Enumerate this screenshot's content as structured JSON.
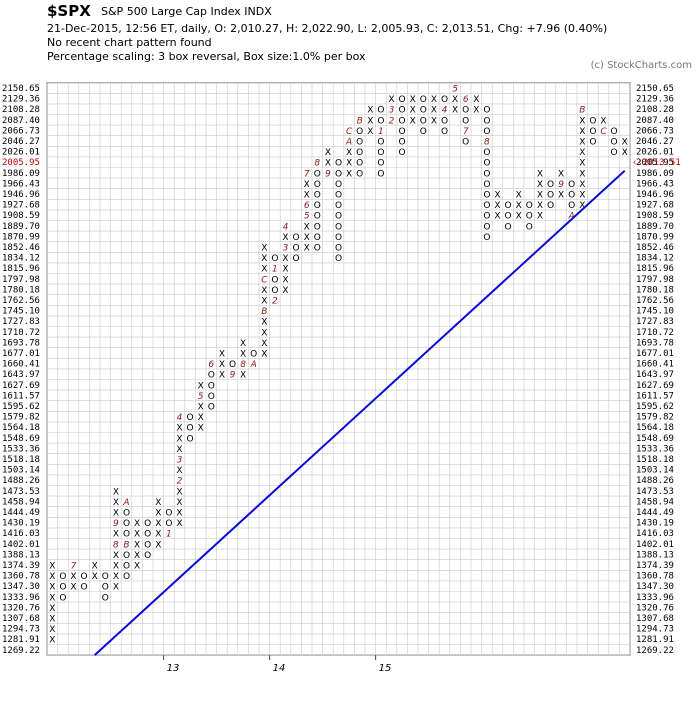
{
  "header": {
    "symbol": "$SPX",
    "name": "S&P 500 Large Cap Index  INDX",
    "quote": "21-Dec-2015, 12:56 ET, daily, O: 2,010.27, H: 2,022.90, L: 2,005.93, C: 2,013.51, Chg: +7.96 (0.40%)",
    "pattern": "No recent chart pattern found",
    "scaling": "Percentage scaling: 3 box reversal, Box size:1.0% per box",
    "credit": "(c) StockCharts.com"
  },
  "chart_data": {
    "type": "point-and-figure",
    "box_size_percent": 1.0,
    "reversal": 3,
    "y_levels": [
      "1269.22",
      "1281.91",
      "1294.73",
      "1307.68",
      "1320.76",
      "1333.96",
      "1347.30",
      "1360.78",
      "1374.39",
      "1388.13",
      "1402.01",
      "1416.03",
      "1430.19",
      "1444.49",
      "1458.94",
      "1473.53",
      "1488.26",
      "1503.14",
      "1518.18",
      "1533.36",
      "1548.69",
      "1564.18",
      "1579.82",
      "1595.62",
      "1611.57",
      "1627.69",
      "1643.97",
      "1660.41",
      "1677.01",
      "1693.78",
      "1710.72",
      "1727.83",
      "1745.10",
      "1762.56",
      "1780.18",
      "1797.98",
      "1815.96",
      "1834.12",
      "1852.46",
      "1870.99",
      "1889.70",
      "1908.59",
      "1927.68",
      "1946.96",
      "1966.43",
      "1986.09",
      "2005.95",
      "2026.01",
      "2046.27",
      "2066.73",
      "2087.40",
      "2108.28",
      "2129.36",
      "2150.65"
    ],
    "highlight_left": "2005.95",
    "last_price_label": "2013.51",
    "year_labels": [
      {
        "label": "13",
        "col": 12
      },
      {
        "label": "14",
        "col": 22
      },
      {
        "label": "15",
        "col": 32
      }
    ],
    "columns": [
      {
        "t": "X",
        "from": 1,
        "to": 8
      },
      {
        "t": "O",
        "from": 5,
        "to": 7
      },
      {
        "t": "X",
        "from": 6,
        "to": 8,
        "m": {
          "8": "7"
        }
      },
      {
        "t": "O",
        "from": 6,
        "to": 7
      },
      {
        "t": "X",
        "from": 7,
        "to": 8
      },
      {
        "t": "O",
        "from": 5,
        "to": 7
      },
      {
        "t": "X",
        "from": 6,
        "to": 15,
        "m": {
          "10": "8",
          "12": "9"
        }
      },
      {
        "t": "O",
        "from": 7,
        "to": 14,
        "m": {
          "10": "B",
          "14": "A"
        }
      },
      {
        "t": "X",
        "from": 8,
        "to": 12
      },
      {
        "t": "O",
        "from": 9,
        "to": 12
      },
      {
        "t": "X",
        "from": 10,
        "to": 14
      },
      {
        "t": "O",
        "from": 11,
        "to": 13,
        "m": {
          "11": "1"
        }
      },
      {
        "t": "X",
        "from": 12,
        "to": 22,
        "m": {
          "16": "2",
          "18": "3",
          "22": "4"
        }
      },
      {
        "t": "O",
        "from": 20,
        "to": 22
      },
      {
        "t": "X",
        "from": 21,
        "to": 25,
        "m": {
          "24": "5"
        }
      },
      {
        "t": "O",
        "from": 23,
        "to": 27,
        "m": {
          "27": "6"
        }
      },
      {
        "t": "X",
        "from": 26,
        "to": 28
      },
      {
        "t": "O",
        "from": 26,
        "to": 27,
        "m": {
          "26": "9"
        }
      },
      {
        "t": "X",
        "from": 26,
        "to": 29,
        "m": {
          "27": "8"
        }
      },
      {
        "t": "O",
        "from": 27,
        "to": 28,
        "m": {
          "27": "A"
        }
      },
      {
        "t": "X",
        "from": 28,
        "to": 38,
        "m": {
          "32": "B",
          "35": "C"
        }
      },
      {
        "t": "O",
        "from": 33,
        "to": 37,
        "m": {
          "33": "2",
          "36": "1"
        }
      },
      {
        "t": "X",
        "from": 34,
        "to": 40,
        "m": {
          "40": "4",
          "38": "3"
        }
      },
      {
        "t": "O",
        "from": 37,
        "to": 39
      },
      {
        "t": "X",
        "from": 38,
        "to": 45,
        "m": {
          "41": "5",
          "42": "6",
          "45": "7"
        }
      },
      {
        "t": "O",
        "from": 38,
        "to": 46,
        "m": {
          "46": "8"
        }
      },
      {
        "t": "X",
        "from": 45,
        "to": 47,
        "m": {
          "45": "9"
        }
      },
      {
        "t": "O",
        "from": 37,
        "to": 46
      },
      {
        "t": "X",
        "from": 45,
        "to": 49,
        "m": {
          "48": "A",
          "49": "C"
        }
      },
      {
        "t": "O",
        "from": 45,
        "to": 50,
        "m": {
          "50": "B"
        }
      },
      {
        "t": "X",
        "from": 49,
        "to": 51
      },
      {
        "t": "O",
        "from": 45,
        "to": 51,
        "m": {
          "49": "1"
        }
      },
      {
        "t": "X",
        "from": 50,
        "to": 52,
        "m": {
          "50": "2",
          "51": "3"
        }
      },
      {
        "t": "O",
        "from": 47,
        "to": 52
      },
      {
        "t": "X",
        "from": 50,
        "to": 52
      },
      {
        "t": "O",
        "from": 49,
        "to": 52
      },
      {
        "t": "X",
        "from": 50,
        "to": 52
      },
      {
        "t": "O",
        "from": 49,
        "to": 52,
        "m": {
          "51": "4"
        }
      },
      {
        "t": "X",
        "from": 51,
        "to": 53,
        "m": {
          "53": "5"
        }
      },
      {
        "t": "O",
        "from": 48,
        "to": 52,
        "m": {
          "52": "6",
          "49": "7"
        }
      },
      {
        "t": "X",
        "from": 51,
        "to": 52
      },
      {
        "t": "O",
        "from": 39,
        "to": 51,
        "m": {
          "48": "8"
        }
      },
      {
        "t": "X",
        "from": 41,
        "to": 43
      },
      {
        "t": "O",
        "from": 40,
        "to": 42
      },
      {
        "t": "X",
        "from": 41,
        "to": 43
      },
      {
        "t": "O",
        "from": 40,
        "to": 42
      },
      {
        "t": "X",
        "from": 41,
        "to": 45
      },
      {
        "t": "O",
        "from": 42,
        "to": 44
      },
      {
        "t": "X",
        "from": 43,
        "to": 45,
        "m": {
          "44": "9"
        }
      },
      {
        "t": "O",
        "from": 41,
        "to": 44,
        "m": {
          "41": "A"
        }
      },
      {
        "t": "X",
        "from": 42,
        "to": 51,
        "m": {
          "51": "B"
        }
      },
      {
        "t": "O",
        "from": 48,
        "to": 50
      },
      {
        "t": "X",
        "from": 49,
        "to": 50,
        "m": {
          "49": "C"
        }
      },
      {
        "t": "O",
        "from": 47,
        "to": 49
      },
      {
        "t": "X",
        "from": 47,
        "to": 48
      }
    ],
    "trendline": {
      "type": "bullish support",
      "from": {
        "col": 5,
        "level": "1269.22"
      },
      "to": {
        "col": 55,
        "level": "1986.09"
      }
    }
  }
}
